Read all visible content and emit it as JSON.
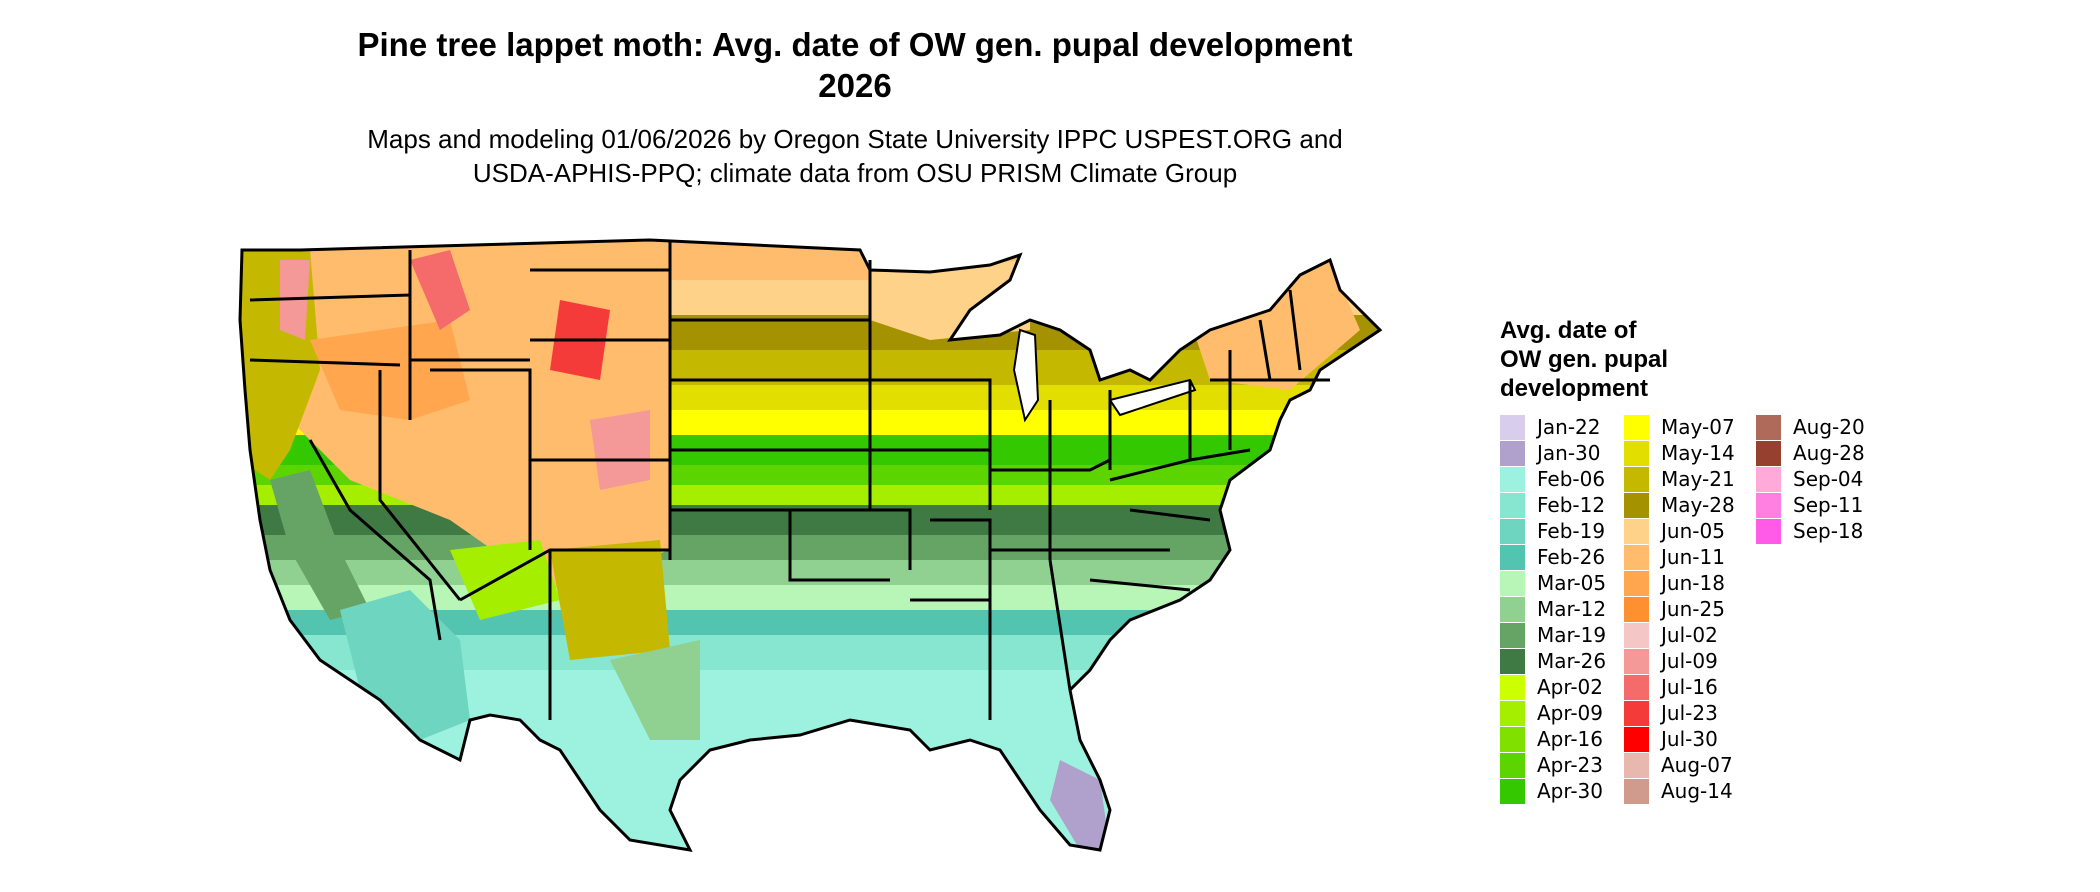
{
  "title": {
    "line1": "Pine tree lappet moth: Avg. date of OW gen. pupal development",
    "line2": "2026"
  },
  "subtitle": {
    "line1": "Maps and modeling 01/06/2026 by Oregon State University IPPC USPEST.ORG and",
    "line2": "USDA-APHIS-PPQ; climate data from OSU PRISM Climate Group"
  },
  "map": {
    "region": "Contiguous United States",
    "base_outline_color": "#000000"
  },
  "legend": {
    "title": "Avg. date of\nOW gen. pupal\ndevelopment",
    "columns": [
      [
        {
          "label": "Jan-22",
          "color": "#d8cdea"
        },
        {
          "label": "Jan-30",
          "color": "#b0a0cc"
        },
        {
          "label": "Feb-06",
          "color": "#9cf2de"
        },
        {
          "label": "Feb-12",
          "color": "#86e6d0"
        },
        {
          "label": "Feb-19",
          "color": "#6ed6c0"
        },
        {
          "label": "Feb-26",
          "color": "#52c4b0"
        },
        {
          "label": "Mar-05",
          "color": "#b8f6b8"
        },
        {
          "label": "Mar-12",
          "color": "#90d090"
        },
        {
          "label": "Mar-19",
          "color": "#66a466"
        },
        {
          "label": "Mar-26",
          "color": "#3f7a44"
        },
        {
          "label": "Apr-02",
          "color": "#ccff00"
        },
        {
          "label": "Apr-09",
          "color": "#a6ee00"
        },
        {
          "label": "Apr-16",
          "color": "#80e000"
        },
        {
          "label": "Apr-23",
          "color": "#5cd400"
        },
        {
          "label": "Apr-30",
          "color": "#33c800"
        }
      ],
      [
        {
          "label": "May-07",
          "color": "#ffff00"
        },
        {
          "label": "May-14",
          "color": "#e2de00"
        },
        {
          "label": "May-21",
          "color": "#c4b800"
        },
        {
          "label": "May-28",
          "color": "#a49200"
        },
        {
          "label": "Jun-05",
          "color": "#ffd28a"
        },
        {
          "label": "Jun-11",
          "color": "#ffbc6c"
        },
        {
          "label": "Jun-18",
          "color": "#ffa64e"
        },
        {
          "label": "Jun-25",
          "color": "#ff9030"
        },
        {
          "label": "Jul-02",
          "color": "#f5c6c6"
        },
        {
          "label": "Jul-09",
          "color": "#f59898"
        },
        {
          "label": "Jul-16",
          "color": "#f56a6a"
        },
        {
          "label": "Jul-23",
          "color": "#f53a3a"
        },
        {
          "label": "Jul-30",
          "color": "#ff0000"
        },
        {
          "label": "Aug-07",
          "color": "#e8b8ae"
        },
        {
          "label": "Aug-14",
          "color": "#d09a8c"
        }
      ],
      [
        {
          "label": "Aug-20",
          "color": "#b06a5a"
        },
        {
          "label": "Aug-28",
          "color": "#964030"
        },
        {
          "label": "Sep-04",
          "color": "#ffaad8"
        },
        {
          "label": "Sep-11",
          "color": "#ff80e0"
        },
        {
          "label": "Sep-18",
          "color": "#ff5ae8"
        }
      ]
    ]
  }
}
